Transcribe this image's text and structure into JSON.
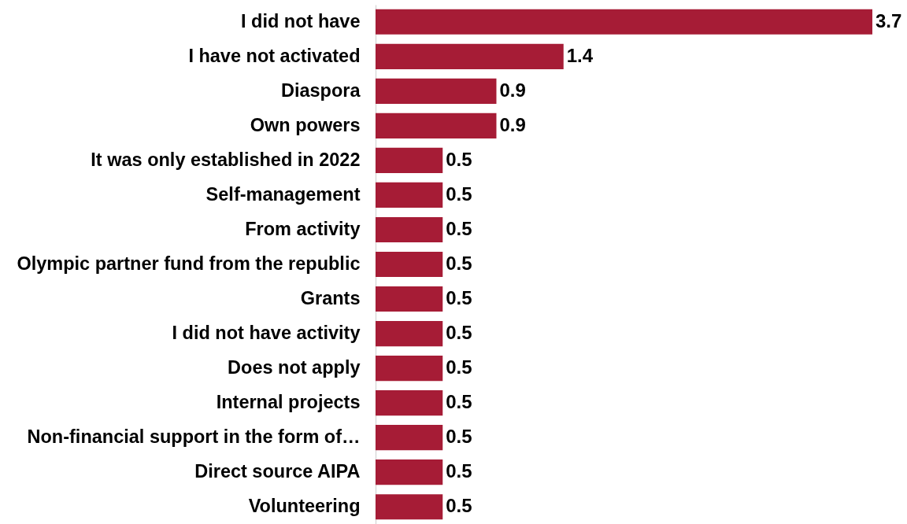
{
  "chart_data": {
    "type": "bar",
    "orientation": "horizontal",
    "data_labels": true,
    "categories": [
      "I did not have",
      "I have not activated",
      "Diaspora",
      "Own powers",
      "It was only established in 2022",
      "Self-management",
      "From activity",
      "Olympic partner fund from the republic",
      "Grants",
      "I did not have activity",
      "Does not apply",
      "Internal projects",
      "Non-financial support in the form of…",
      "Direct source AIPA",
      "Volunteering"
    ],
    "values": [
      3.7,
      1.4,
      0.9,
      0.9,
      0.5,
      0.5,
      0.5,
      0.5,
      0.5,
      0.5,
      0.5,
      0.5,
      0.5,
      0.5,
      0.5
    ],
    "color": "#a61c36"
  }
}
